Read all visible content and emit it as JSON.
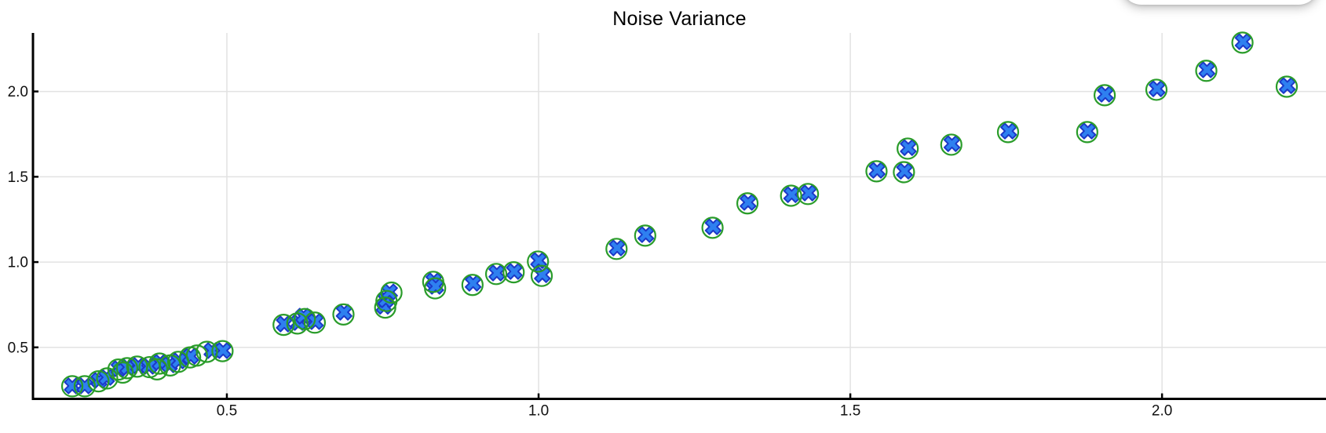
{
  "title": "Noise Variance",
  "colors": {
    "cross_fill": "#2e80f0",
    "cross_edge": "#1c39c8",
    "circle_stroke": "#2a9c2a",
    "grid": "#e2e2e2",
    "axis": "#000000",
    "tick_label": "#111111",
    "background": "#ffffff"
  },
  "chart_data": {
    "type": "scatter",
    "title": "Noise Variance",
    "xlabel": "",
    "ylabel": "",
    "xlim": [
      0.189,
      2.263
    ],
    "ylim": [
      0.198,
      2.343
    ],
    "xticks": [
      0.5,
      1.0,
      1.5,
      2.0
    ],
    "yticks": [
      0.5,
      1.0,
      1.5,
      2.0
    ],
    "grid": true,
    "legend": false,
    "series": [
      {
        "name": "observed-open-circles",
        "marker": "open-circle",
        "color": "#2a9c2a",
        "points": [
          [
            0.252,
            0.272
          ],
          [
            0.272,
            0.272
          ],
          [
            0.294,
            0.301
          ],
          [
            0.308,
            0.318
          ],
          [
            0.326,
            0.37
          ],
          [
            0.333,
            0.352
          ],
          [
            0.34,
            0.378
          ],
          [
            0.356,
            0.387
          ],
          [
            0.376,
            0.384
          ],
          [
            0.388,
            0.371
          ],
          [
            0.392,
            0.405
          ],
          [
            0.409,
            0.394
          ],
          [
            0.422,
            0.415
          ],
          [
            0.441,
            0.441
          ],
          [
            0.452,
            0.452
          ],
          [
            0.468,
            0.474
          ],
          [
            0.493,
            0.478
          ],
          [
            0.591,
            0.632
          ],
          [
            0.613,
            0.64
          ],
          [
            0.625,
            0.666
          ],
          [
            0.641,
            0.645
          ],
          [
            0.687,
            0.693
          ],
          [
            0.754,
            0.733
          ],
          [
            0.756,
            0.772
          ],
          [
            0.764,
            0.821
          ],
          [
            0.831,
            0.884
          ],
          [
            0.834,
            0.846
          ],
          [
            0.894,
            0.866
          ],
          [
            0.932,
            0.93
          ],
          [
            0.96,
            0.94
          ],
          [
            0.999,
            1.003
          ],
          [
            1.005,
            0.919
          ],
          [
            1.125,
            1.077
          ],
          [
            1.171,
            1.155
          ],
          [
            1.279,
            1.201
          ],
          [
            1.335,
            1.344
          ],
          [
            1.405,
            1.389
          ],
          [
            1.432,
            1.399
          ],
          [
            1.542,
            1.532
          ],
          [
            1.586,
            1.527
          ],
          [
            1.592,
            1.665
          ],
          [
            1.662,
            1.688
          ],
          [
            1.753,
            1.762
          ],
          [
            1.88,
            1.762
          ],
          [
            1.908,
            1.978
          ],
          [
            1.991,
            2.01
          ],
          [
            2.071,
            2.121
          ],
          [
            2.129,
            2.286
          ],
          [
            2.2,
            2.028
          ]
        ]
      },
      {
        "name": "predicted-blue-crosses",
        "marker": "x",
        "color": "#2e80f0",
        "edge_color": "#1c39c8",
        "points": [
          [
            0.252,
            0.274
          ],
          [
            0.272,
            0.274
          ],
          [
            0.295,
            0.306
          ],
          [
            0.307,
            0.324
          ],
          [
            0.327,
            0.375
          ],
          [
            0.341,
            0.384
          ],
          [
            0.358,
            0.393
          ],
          [
            0.375,
            0.389
          ],
          [
            0.393,
            0.412
          ],
          [
            0.408,
            0.398
          ],
          [
            0.423,
            0.421
          ],
          [
            0.442,
            0.448
          ],
          [
            0.476,
            0.481
          ],
          [
            0.494,
            0.481
          ],
          [
            0.592,
            0.637
          ],
          [
            0.615,
            0.646
          ],
          [
            0.623,
            0.683
          ],
          [
            0.642,
            0.651
          ],
          [
            0.688,
            0.706
          ],
          [
            0.752,
            0.741
          ],
          [
            0.755,
            0.779
          ],
          [
            0.761,
            0.825
          ],
          [
            0.832,
            0.89
          ],
          [
            0.835,
            0.858
          ],
          [
            0.895,
            0.876
          ],
          [
            0.933,
            0.936
          ],
          [
            0.961,
            0.945
          ],
          [
            1.0,
            1.009
          ],
          [
            1.006,
            0.926
          ],
          [
            1.126,
            1.083
          ],
          [
            1.172,
            1.161
          ],
          [
            1.28,
            1.207
          ],
          [
            1.336,
            1.35
          ],
          [
            1.406,
            1.395
          ],
          [
            1.433,
            1.405
          ],
          [
            1.543,
            1.538
          ],
          [
            1.587,
            1.533
          ],
          [
            1.593,
            1.671
          ],
          [
            1.663,
            1.694
          ],
          [
            1.754,
            1.768
          ],
          [
            1.881,
            1.768
          ],
          [
            1.909,
            1.984
          ],
          [
            1.992,
            2.016
          ],
          [
            2.072,
            2.127
          ],
          [
            2.13,
            2.292
          ],
          [
            2.201,
            2.034
          ]
        ]
      }
    ]
  }
}
